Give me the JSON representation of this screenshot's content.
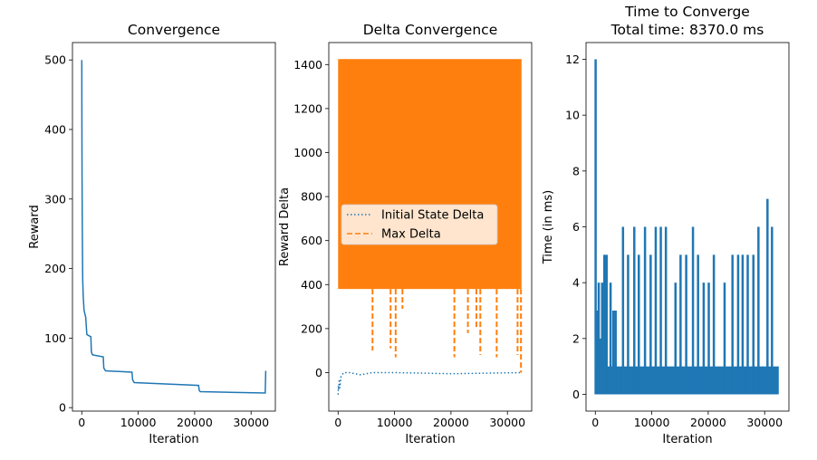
{
  "chart_data": [
    {
      "id": "convergence",
      "type": "line",
      "title": "Convergence",
      "xlabel": "Iteration",
      "ylabel": "Reward",
      "xlim": [
        -1650,
        34300
      ],
      "ylim": [
        -5,
        525
      ],
      "xticks": [
        0,
        10000,
        20000,
        30000
      ],
      "xtick_labels": [
        "0",
        "10000",
        "20000",
        "30000"
      ],
      "yticks": [
        0,
        100,
        200,
        300,
        400,
        500
      ],
      "ytick_labels": [
        "0",
        "100",
        "200",
        "300",
        "400",
        "500"
      ],
      "grid": false,
      "series": [
        {
          "color": "#1f77b4",
          "style": "solid",
          "x": [
            0,
            20,
            50,
            100,
            160,
            260,
            400,
            700,
            900,
            1600,
            1700,
            1900,
            3800,
            3900,
            4200,
            8900,
            9000,
            9300,
            12000,
            20700,
            20800,
            21000,
            32500,
            32600
          ],
          "y": [
            500,
            420,
            330,
            250,
            185,
            160,
            140,
            130,
            105,
            102,
            80,
            76,
            73,
            57,
            53,
            51,
            40,
            36,
            35,
            32,
            25,
            23,
            21,
            53
          ]
        }
      ]
    },
    {
      "id": "delta-convergence",
      "type": "line",
      "title": "Delta Convergence",
      "xlabel": "Iteration",
      "ylabel": "Reward Delta",
      "xlim": [
        -1650,
        34300
      ],
      "ylim": [
        -175,
        1500
      ],
      "xticks": [
        0,
        10000,
        20000,
        30000
      ],
      "xtick_labels": [
        "0",
        "10000",
        "20000",
        "30000"
      ],
      "yticks": [
        0,
        200,
        400,
        600,
        800,
        1000,
        1200,
        1400
      ],
      "ytick_labels": [
        "0",
        "200",
        "400",
        "600",
        "800",
        "1000",
        "1200",
        "1400"
      ],
      "grid": false,
      "legend": {
        "position": "center-left",
        "entries": [
          {
            "label": "Initial State Delta",
            "color": "#1f77b4",
            "style": "dotted"
          },
          {
            "label": "Max Delta",
            "color": "#ff7f0e",
            "style": "dashed"
          }
        ]
      },
      "series": [
        {
          "name": "Initial State Delta",
          "color": "#1f77b4",
          "style": "dotted",
          "x": [
            0,
            50,
            100,
            200,
            300,
            500,
            700,
            1000,
            2000,
            4000,
            6000,
            10000,
            20000,
            32500
          ],
          "y": [
            -100,
            -60,
            -80,
            -30,
            -70,
            -20,
            -10,
            0,
            0,
            -10,
            0,
            0,
            -5,
            0
          ]
        },
        {
          "name": "Max Delta",
          "color": "#ff7f0e",
          "style": "dashed",
          "x": [
            0,
            32500
          ],
          "y": [
            1425,
            380
          ],
          "band": {
            "x_start": 0,
            "x_end": 32500,
            "y_low": 380,
            "y_high": 1425
          },
          "spikes_low": [
            {
              "x": 6100,
              "y": 100
            },
            {
              "x": 9300,
              "y": 110
            },
            {
              "x": 10200,
              "y": 70
            },
            {
              "x": 11400,
              "y": 290
            },
            {
              "x": 20600,
              "y": 70
            },
            {
              "x": 23000,
              "y": 180
            },
            {
              "x": 24500,
              "y": 200
            },
            {
              "x": 25200,
              "y": 80
            },
            {
              "x": 28100,
              "y": 70
            },
            {
              "x": 31800,
              "y": 80
            },
            {
              "x": 32400,
              "y": 0
            }
          ]
        }
      ]
    },
    {
      "id": "time-to-converge",
      "type": "line",
      "title": "Time to Converge",
      "subtitle": "Total time: 8370.0 ms",
      "xlabel": "Iteration",
      "ylabel": "Time (in ms)",
      "xlim": [
        -1650,
        34300
      ],
      "ylim": [
        -0.6,
        12.6
      ],
      "xticks": [
        0,
        10000,
        20000,
        30000
      ],
      "xtick_labels": [
        "0",
        "10000",
        "20000",
        "30000"
      ],
      "yticks": [
        0,
        2,
        4,
        6,
        8,
        10,
        12
      ],
      "ytick_labels": [
        "0",
        "2",
        "4",
        "6",
        "8",
        "10",
        "12"
      ],
      "grid": false,
      "series": [
        {
          "color": "#1f77b4",
          "style": "solid",
          "band": {
            "x_start": 0,
            "x_end": 32500,
            "y_low": 0,
            "y_high": 1
          },
          "spikes": [
            {
              "x": 50,
              "y": 12
            },
            {
              "x": 400,
              "y": 3
            },
            {
              "x": 600,
              "y": 4
            },
            {
              "x": 900,
              "y": 2
            },
            {
              "x": 1200,
              "y": 4
            },
            {
              "x": 1600,
              "y": 5
            },
            {
              "x": 2000,
              "y": 5
            },
            {
              "x": 2700,
              "y": 4
            },
            {
              "x": 3200,
              "y": 3
            },
            {
              "x": 3600,
              "y": 3
            },
            {
              "x": 4900,
              "y": 6
            },
            {
              "x": 5800,
              "y": 5
            },
            {
              "x": 6900,
              "y": 6
            },
            {
              "x": 7700,
              "y": 5
            },
            {
              "x": 8800,
              "y": 6
            },
            {
              "x": 9800,
              "y": 5
            },
            {
              "x": 10700,
              "y": 6
            },
            {
              "x": 11600,
              "y": 6
            },
            {
              "x": 12500,
              "y": 6
            },
            {
              "x": 14200,
              "y": 4
            },
            {
              "x": 15100,
              "y": 5
            },
            {
              "x": 16100,
              "y": 5
            },
            {
              "x": 17300,
              "y": 6
            },
            {
              "x": 18200,
              "y": 5
            },
            {
              "x": 19200,
              "y": 4
            },
            {
              "x": 20100,
              "y": 4
            },
            {
              "x": 21000,
              "y": 5
            },
            {
              "x": 22900,
              "y": 4
            },
            {
              "x": 24300,
              "y": 5
            },
            {
              "x": 25300,
              "y": 5
            },
            {
              "x": 26100,
              "y": 5
            },
            {
              "x": 27000,
              "y": 5
            },
            {
              "x": 28000,
              "y": 5
            },
            {
              "x": 28900,
              "y": 6
            },
            {
              "x": 30500,
              "y": 7
            },
            {
              "x": 31300,
              "y": 6
            }
          ]
        }
      ]
    }
  ]
}
